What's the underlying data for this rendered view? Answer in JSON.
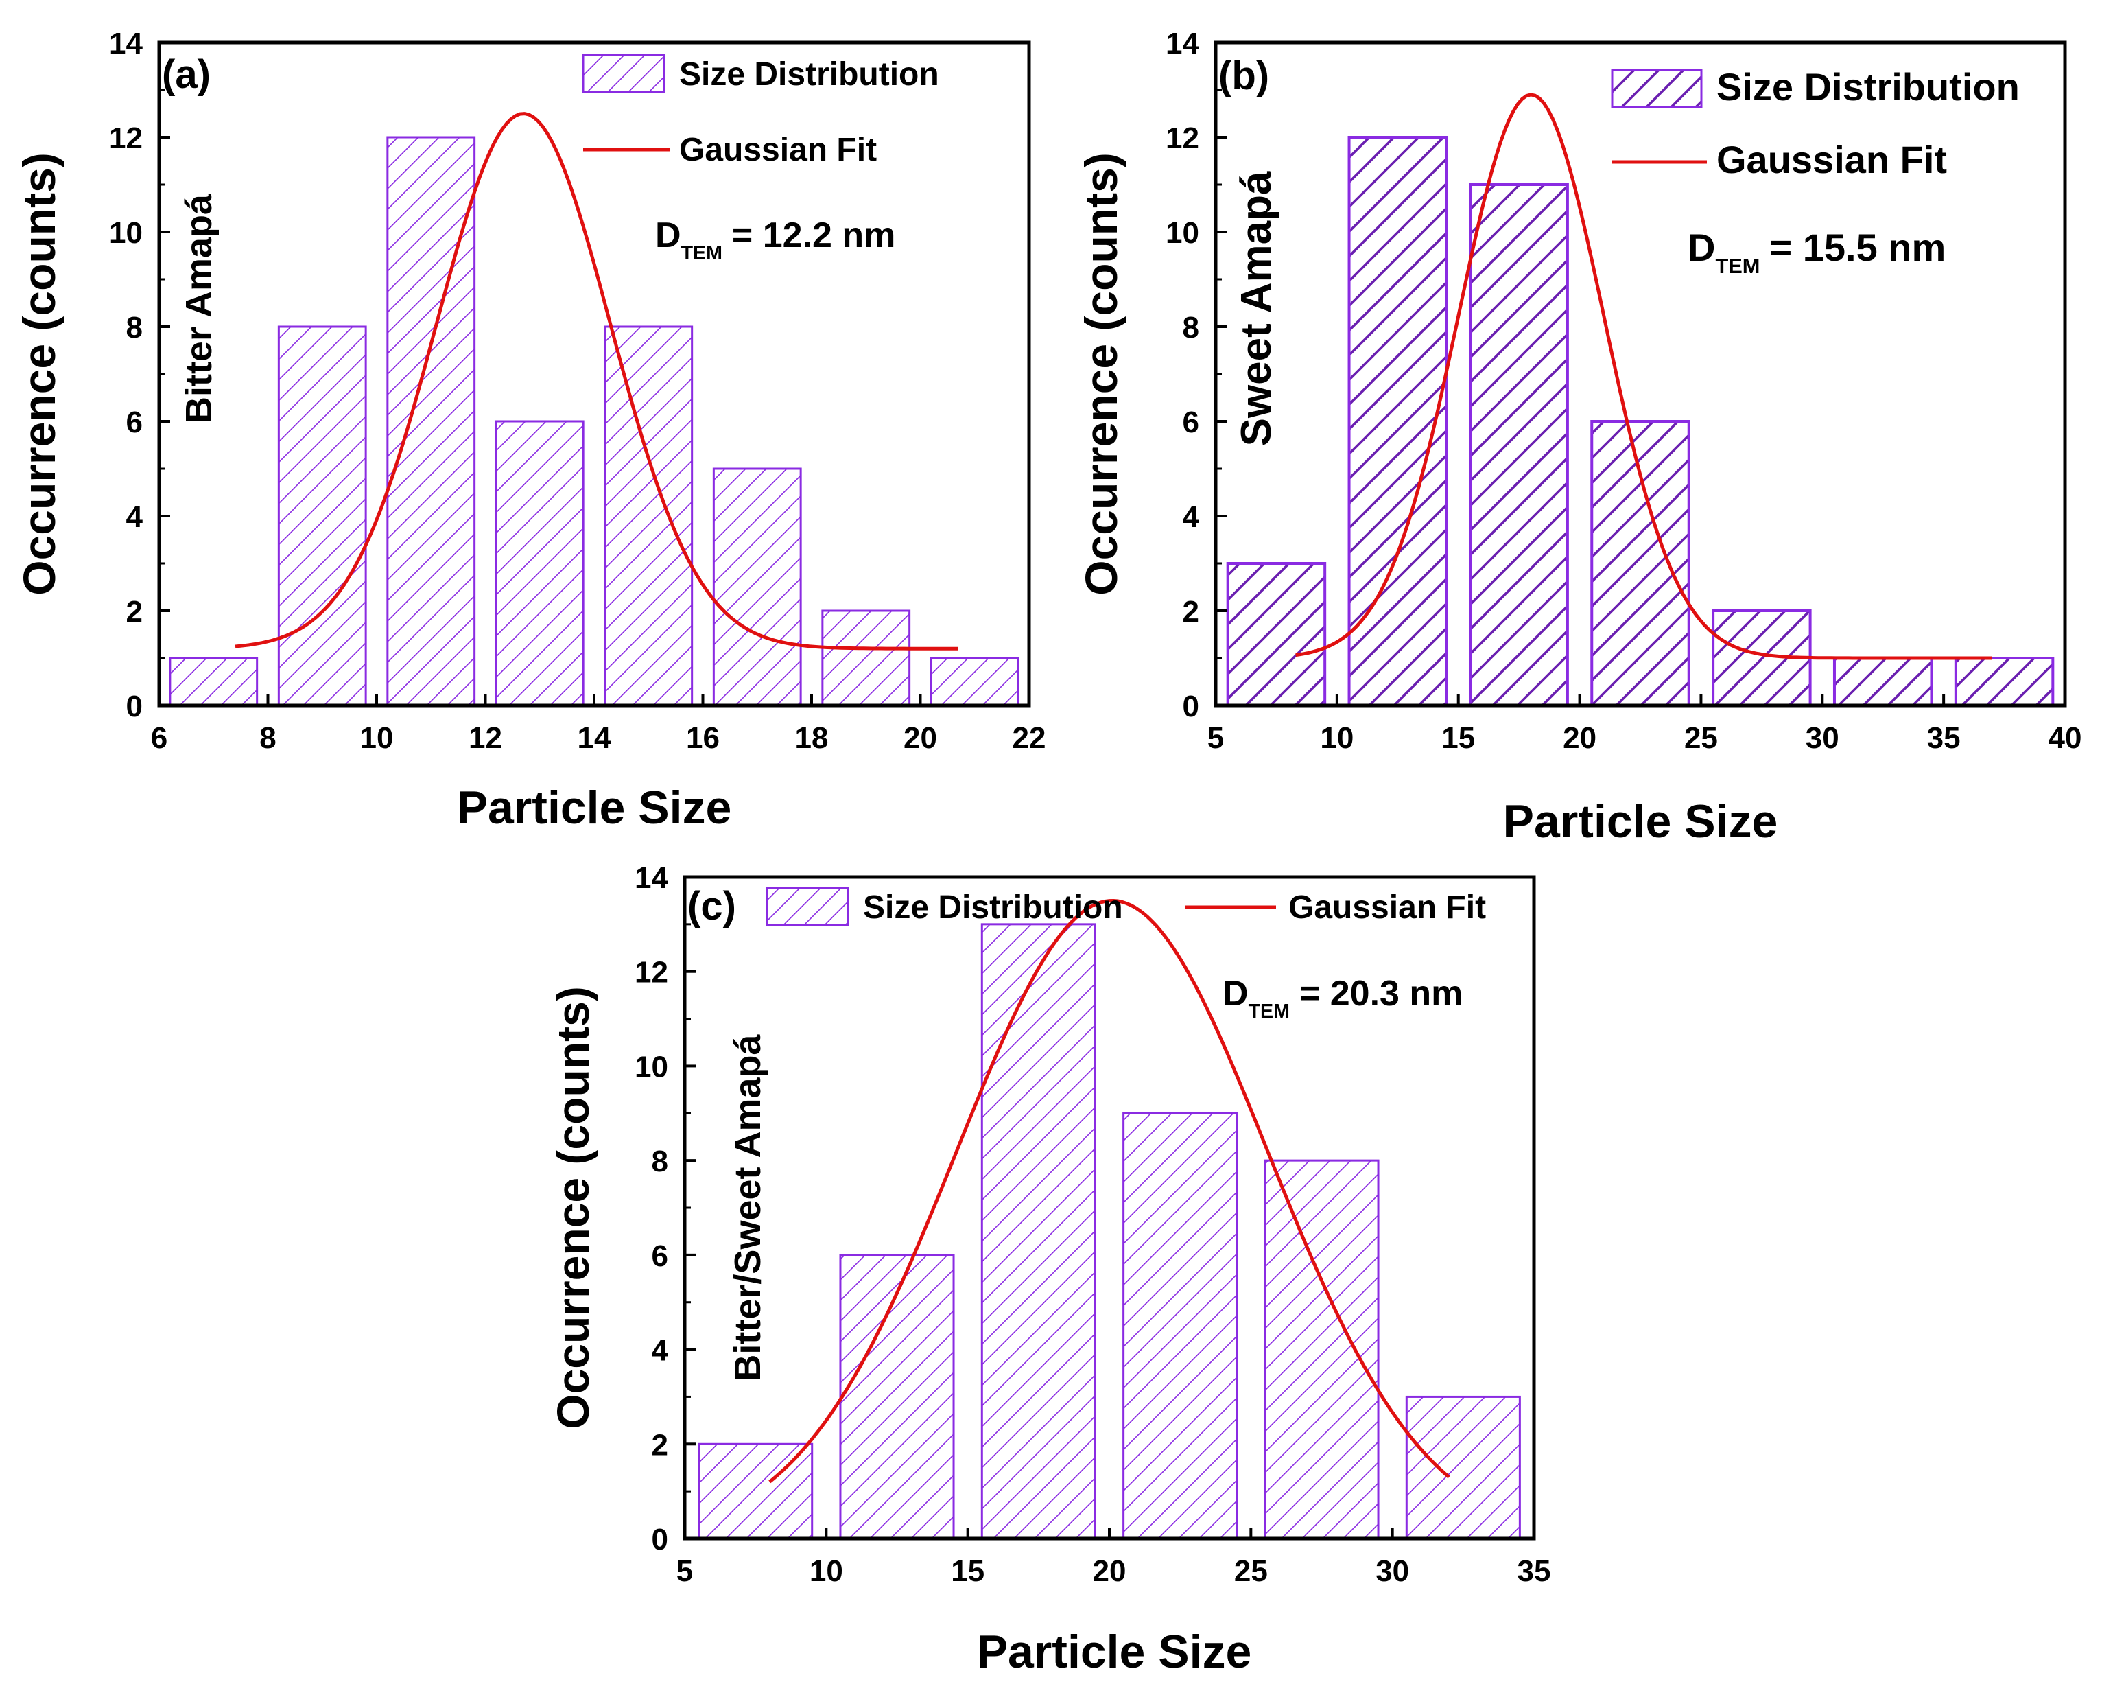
{
  "colors": {
    "bar_edge": "#8a2be2",
    "hatch": "#8a2be2",
    "fit": "#e01010",
    "axis": "#000000",
    "background": "#ffffff"
  },
  "chart_data": [
    {
      "id": "a",
      "type": "bar",
      "panel_label": "(a)",
      "sample_label": "Bitter Amapá",
      "xlabel": "Particle Size",
      "ylabel": "Occurrence (counts)",
      "xlim": [
        6,
        22
      ],
      "ylim": [
        0,
        14
      ],
      "xticks": [
        "6",
        "8",
        "10",
        "12",
        "14",
        "16",
        "18",
        "20",
        "22"
      ],
      "yticks": [
        "0",
        "2",
        "4",
        "6",
        "8",
        "10",
        "12",
        "14"
      ],
      "bars": [
        {
          "x0": 6.2,
          "x1": 7.8,
          "value": 1
        },
        {
          "x0": 8.2,
          "x1": 9.8,
          "value": 8
        },
        {
          "x0": 10.2,
          "x1": 11.8,
          "value": 12
        },
        {
          "x0": 12.2,
          "x1": 13.8,
          "value": 6
        },
        {
          "x0": 14.2,
          "x1": 15.8,
          "value": 8
        },
        {
          "x0": 16.2,
          "x1": 17.8,
          "value": 5
        },
        {
          "x0": 18.2,
          "x1": 19.8,
          "value": 2
        },
        {
          "x0": 20.2,
          "x1": 21.8,
          "value": 1
        }
      ],
      "fit": {
        "y0": 1.2,
        "A": 11.3,
        "xc": 12.7,
        "sigma": 1.6,
        "xmin": 7.4,
        "xmax": 20.7
      },
      "legend": {
        "bars": "Size Distribution",
        "fit": "Gaussian Fit",
        "layout": "vertical"
      },
      "dtem": {
        "prefix": "D",
        "sub": "TEM",
        "text": "= 12.2 nm"
      },
      "hatch_style": "thin"
    },
    {
      "id": "b",
      "type": "bar",
      "panel_label": "(b)",
      "sample_label": "Sweet Amapá",
      "xlabel": "Particle Size",
      "ylabel": "Occurrence (counts)",
      "xlim": [
        5,
        40
      ],
      "ylim": [
        0,
        14
      ],
      "xticks": [
        "5",
        "10",
        "15",
        "20",
        "25",
        "30",
        "35",
        "40"
      ],
      "yticks": [
        "0",
        "2",
        "4",
        "6",
        "8",
        "10",
        "12",
        "14"
      ],
      "bars": [
        {
          "x0": 5.5,
          "x1": 9.5,
          "value": 3
        },
        {
          "x0": 10.5,
          "x1": 14.5,
          "value": 12
        },
        {
          "x0": 15.5,
          "x1": 19.5,
          "value": 11
        },
        {
          "x0": 20.5,
          "x1": 24.5,
          "value": 6
        },
        {
          "x0": 25.5,
          "x1": 29.5,
          "value": 2
        },
        {
          "x0": 30.5,
          "x1": 34.5,
          "value": 1
        },
        {
          "x0": 35.5,
          "x1": 39.5,
          "value": 1
        }
      ],
      "fit": {
        "y0": 1.0,
        "A": 11.9,
        "xc": 18.0,
        "sigma": 3.0,
        "xmin": 8.3,
        "xmax": 37.0
      },
      "legend": {
        "bars": "Size Distribution",
        "fit": "Gaussian Fit",
        "layout": "vertical"
      },
      "dtem": {
        "prefix": "D",
        "sub": "TEM",
        "text": "= 15.5 nm"
      },
      "hatch_style": "thick"
    },
    {
      "id": "c",
      "type": "bar",
      "panel_label": "(c)",
      "sample_label": "Bitter/Sweet Amapá",
      "xlabel": "Particle Size",
      "ylabel": "Occurrence (counts)",
      "xlim": [
        5,
        35
      ],
      "ylim": [
        0,
        14
      ],
      "xticks": [
        "5",
        "10",
        "15",
        "20",
        "25",
        "30",
        "35"
      ],
      "yticks": [
        "0",
        "2",
        "4",
        "6",
        "8",
        "10",
        "12",
        "14"
      ],
      "bars": [
        {
          "x0": 5.5,
          "x1": 9.5,
          "value": 2
        },
        {
          "x0": 10.5,
          "x1": 14.5,
          "value": 6
        },
        {
          "x0": 15.5,
          "x1": 19.5,
          "value": 13
        },
        {
          "x0": 20.5,
          "x1": 24.5,
          "value": 9
        },
        {
          "x0": 25.5,
          "x1": 29.5,
          "value": 8
        },
        {
          "x0": 30.5,
          "x1": 34.5,
          "value": 3
        }
      ],
      "fit": {
        "y0": 0,
        "A": 13.5,
        "xc": 20.1,
        "sigma": 5.5,
        "xmin": 8.0,
        "xmax": 32.0
      },
      "legend": {
        "bars": "Size Distribution",
        "fit": "Gaussian Fit",
        "layout": "horizontal"
      },
      "dtem": {
        "prefix": "D",
        "sub": "TEM",
        "text": "= 20.3 nm"
      },
      "hatch_style": "thin"
    }
  ]
}
